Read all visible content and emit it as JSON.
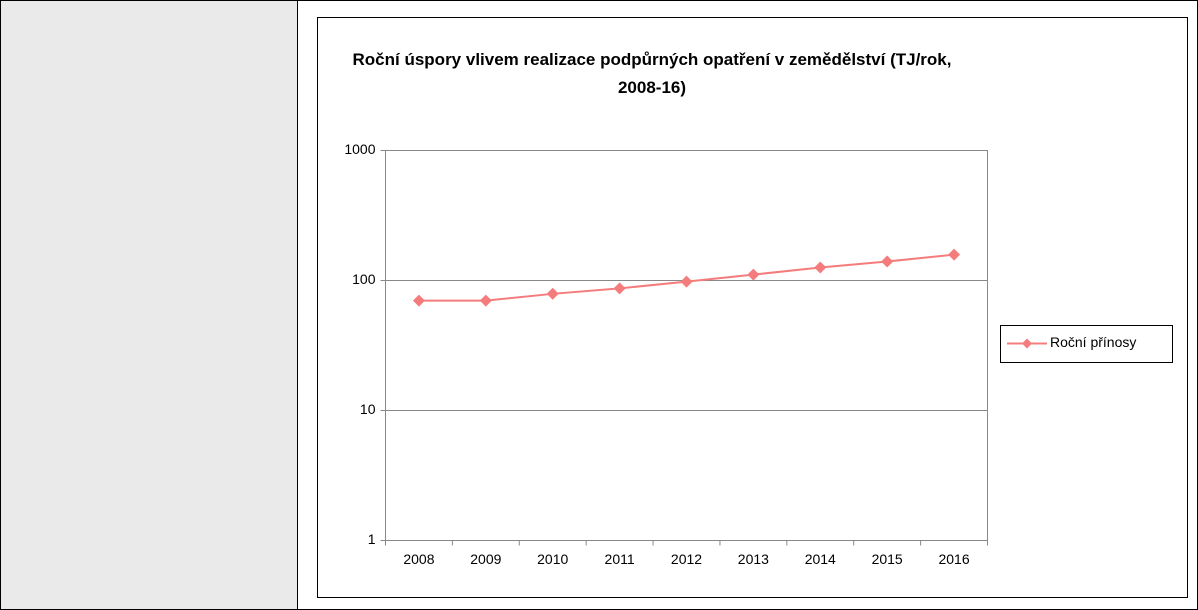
{
  "chart_data": {
    "type": "line",
    "title": "Roční úspory vlivem realizace podpůrných opatření v zemědělství (TJ/rok, 2008-16)",
    "categories": [
      "2008",
      "2009",
      "2010",
      "2011",
      "2012",
      "2013",
      "2014",
      "2015",
      "2016"
    ],
    "series": [
      {
        "name": "Roční přínosy",
        "color": "#f47c7c",
        "values": [
          70,
          70,
          79,
          87,
          98,
          111,
          126,
          140,
          158
        ]
      }
    ],
    "ylim": [
      1,
      1000
    ],
    "yticks": [
      1,
      10,
      100,
      1000
    ],
    "log_scale": true,
    "grid": true,
    "legend": "right"
  }
}
